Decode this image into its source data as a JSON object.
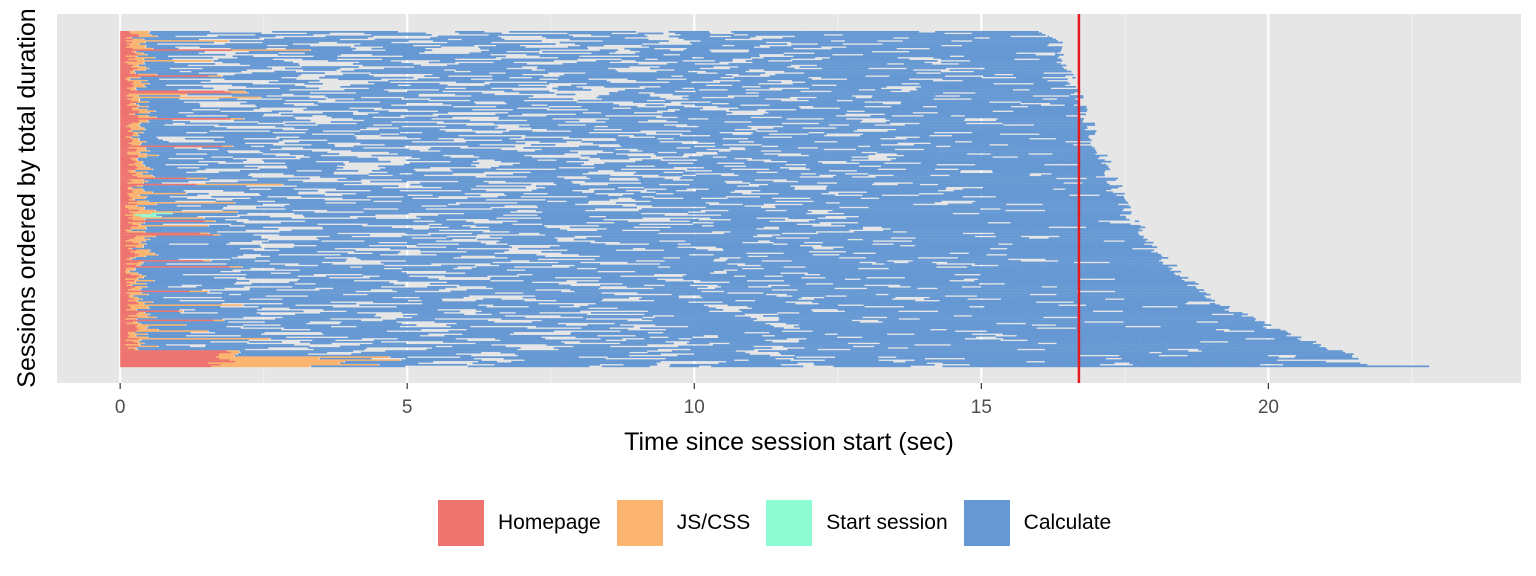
{
  "chart_data": {
    "type": "gantt-bar",
    "title": "",
    "xlabel": "Time since session start (sec)",
    "ylabel": "Sessions ordered by total duration",
    "xlim": [
      -1.1,
      24.4
    ],
    "x_ticks": [
      0,
      5,
      10,
      15,
      20
    ],
    "x_tick_labels": [
      "0",
      "5",
      "10",
      "15",
      "20"
    ],
    "x_minor_ticks": [
      2.5,
      7.5,
      12.5,
      17.5,
      22.5
    ],
    "grid": true,
    "legend_position": "bottom",
    "session_count": 220,
    "reference_line": {
      "x": 16.7,
      "color": "#e41a1c"
    },
    "series": [
      {
        "name": "Homepage",
        "color": "#ee7470"
      },
      {
        "name": "JS/CSS",
        "color": "#fbb571"
      },
      {
        "name": "Start session",
        "color": "#8efdd3"
      },
      {
        "name": "Calculate",
        "color": "#6699d4"
      }
    ]
  }
}
